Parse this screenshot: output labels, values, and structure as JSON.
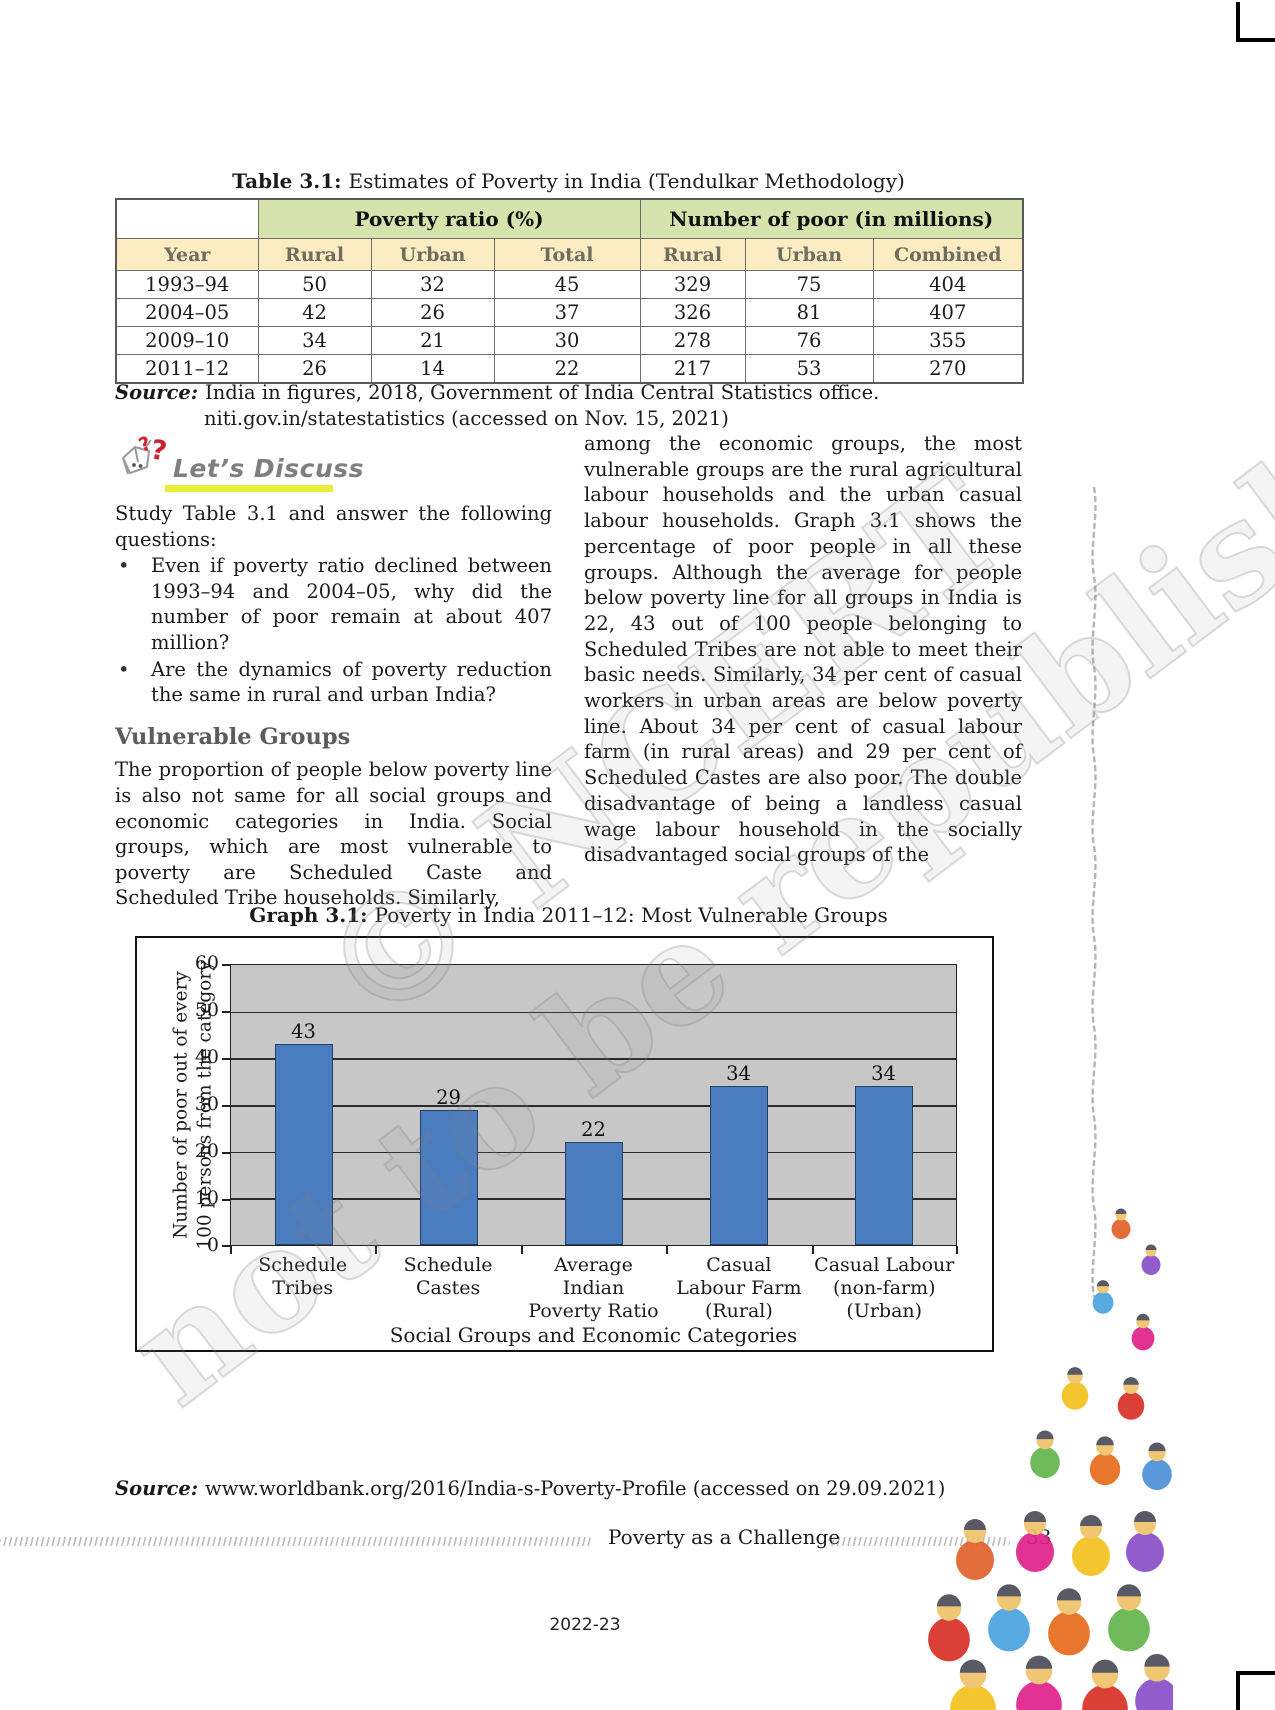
{
  "colors": {
    "table_group_header_bg": "#d7e3ad",
    "table_col_header_bg": "#fcecc1",
    "bar_fill": "#4a7cc0",
    "bar_border": "#24415f",
    "plot_bg": "#c7c7c7",
    "discuss_underline": "#e9ed35",
    "question_mark_red": "#cf2030",
    "heading_gray": "#5c5c5c"
  },
  "table": {
    "title_label": "Table 3.1:",
    "title_text": "Estimates of Poverty in India (Tendulkar Methodology)",
    "group_header_1": "Poverty ratio (%)",
    "group_header_2": "Number of poor (in millions)",
    "col_headers": [
      "Year",
      "Rural",
      "Urban",
      "Total",
      "Rural",
      "Urban",
      "Combined"
    ],
    "rows": [
      [
        "1993–94",
        "50",
        "32",
        "45",
        "329",
        "75",
        "404"
      ],
      [
        "2004–05",
        "42",
        "26",
        "37",
        "326",
        "81",
        "407"
      ],
      [
        "2009–10",
        "34",
        "21",
        "30",
        "278",
        "76",
        "355"
      ],
      [
        "2011–12",
        "26",
        "14",
        "22",
        "217",
        "53",
        "270"
      ]
    ],
    "source_label": "Source:",
    "source_line1": "India in figures, 2018, Government of India Central Statistics office.",
    "source_line2": "niti.gov.in/statestatistics (accessed on Nov. 15, 2021)"
  },
  "discuss": {
    "heading": "Let’s Discuss",
    "icon_glyph": "?",
    "intro": "Study Table 3.1 and answer the following questions:",
    "bullet_glyph": "•",
    "bullets": [
      "Even if poverty ratio declined between 1993–94 and 2004–05, why did the number of poor remain at about 407 million?",
      "Are the dynamics of poverty reduction the same in rural and urban India?"
    ]
  },
  "vulnerable": {
    "heading": "Vulnerable Groups",
    "paragraph": "The proportion of people below poverty line is also not same for all social groups and economic categories in India. Social groups, which are most vulnerable to poverty are Scheduled Caste and Scheduled Tribe households. Similarly,"
  },
  "right_column": {
    "paragraph": "among the economic groups, the most vulnerable groups are the rural agricultural labour households and the urban casual labour households. Graph 3.1 shows the percentage of poor people in all these groups. Although the average for people below poverty line for all groups in India is 22, 43 out of 100 people belonging to Scheduled Tribes are not able to meet their basic needs. Similarly, 34 per cent of casual workers in urban areas are below poverty line. About 34 per cent of casual labour farm (in rural areas) and 29 per cent of Scheduled Castes are also poor. The double disadvantage of being a landless casual wage labour household in the socially disadvantaged social groups of the"
  },
  "graph": {
    "title_label": "Graph 3.1:",
    "title_text": "Poverty in India 2011–12: Most Vulnerable Groups",
    "source_label": "Source:",
    "source_text": "www.worldbank.org/2016/India-s-Poverty-Profile (accessed on 29.09.2021)"
  },
  "chart_data": {
    "type": "bar",
    "title": "Graph 3.1: Poverty in India 2011–12: Most Vulnerable Groups",
    "categories": [
      "Schedule Tribes",
      "Schedule Castes",
      "Average Indian Poverty Ratio",
      "Casual Labour Farm (Rural)",
      "Casual Labour (non-farm) (Urban)"
    ],
    "category_lines": [
      [
        "Schedule Tribes"
      ],
      [
        "Schedule",
        "Castes"
      ],
      [
        "Average Indian",
        "Poverty Ratio"
      ],
      [
        "Casual",
        "Labour Farm",
        "(Rural)"
      ],
      [
        "Casual Labour",
        "(non-farm)",
        "(Urban)"
      ]
    ],
    "values": [
      43,
      29,
      22,
      34,
      34
    ],
    "xlabel": "Social Groups and Economic Categories",
    "ylabel_lines": [
      "Number of poor out of every",
      "100 persons  from the category"
    ],
    "y_ticks": [
      "60",
      "50",
      "40",
      "30",
      "20",
      "10",
      "0"
    ],
    "ylim": [
      0,
      60
    ],
    "grid": true,
    "legend": false
  },
  "watermark": {
    "line1": "© NCERT",
    "line2": "not to be republished"
  },
  "footer": {
    "chapter": "Poverty as a Challenge",
    "page_number": "33",
    "session": "2022-23"
  }
}
